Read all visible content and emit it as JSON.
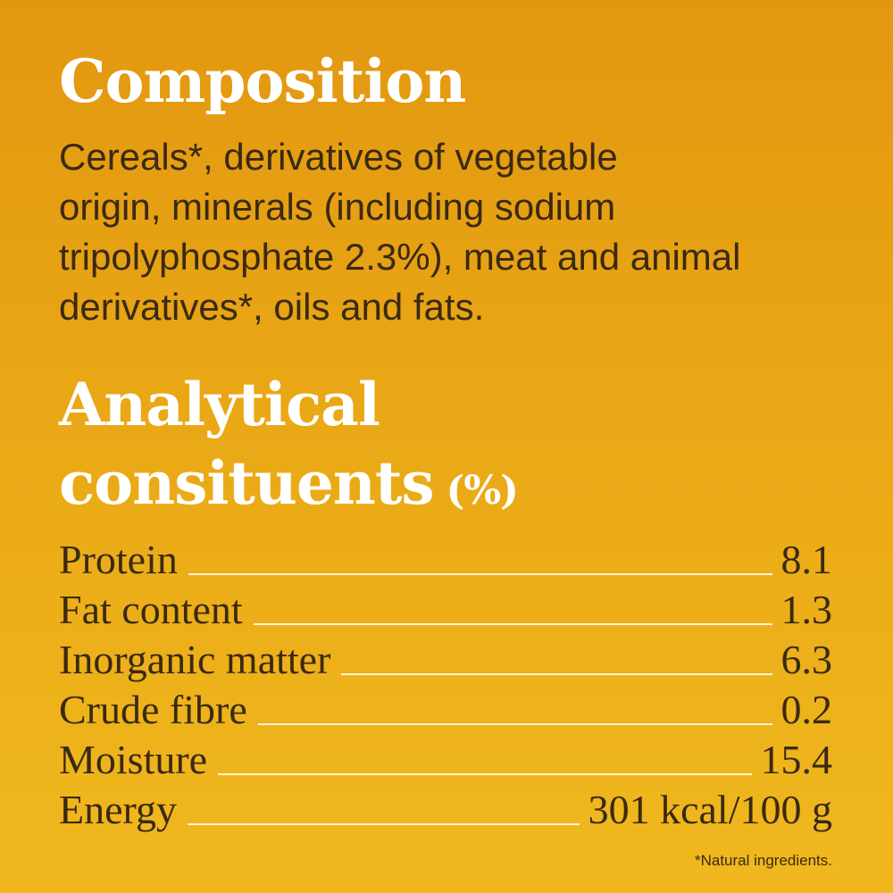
{
  "composition": {
    "title": "Composition",
    "lines": [
      "Cereals*, derivatives of vegetable",
      "origin, minerals (including sodium",
      "tripolyphosphate 2.3%), meat and animal",
      "derivatives*, oils and fats."
    ]
  },
  "analytical": {
    "title_lines": [
      "Analytical",
      "consituents"
    ],
    "unit": "(%)",
    "rows": [
      [
        "Protein",
        "8.1"
      ],
      [
        "Fat content",
        "1.3"
      ],
      [
        "Inorganic matter",
        "6.3"
      ],
      [
        "Crude fibre",
        "0.2"
      ],
      [
        "Moisture",
        "15.4"
      ],
      [
        "Energy",
        "301 kcal/100 g"
      ]
    ]
  },
  "footnote": "*Natural ingredients."
}
